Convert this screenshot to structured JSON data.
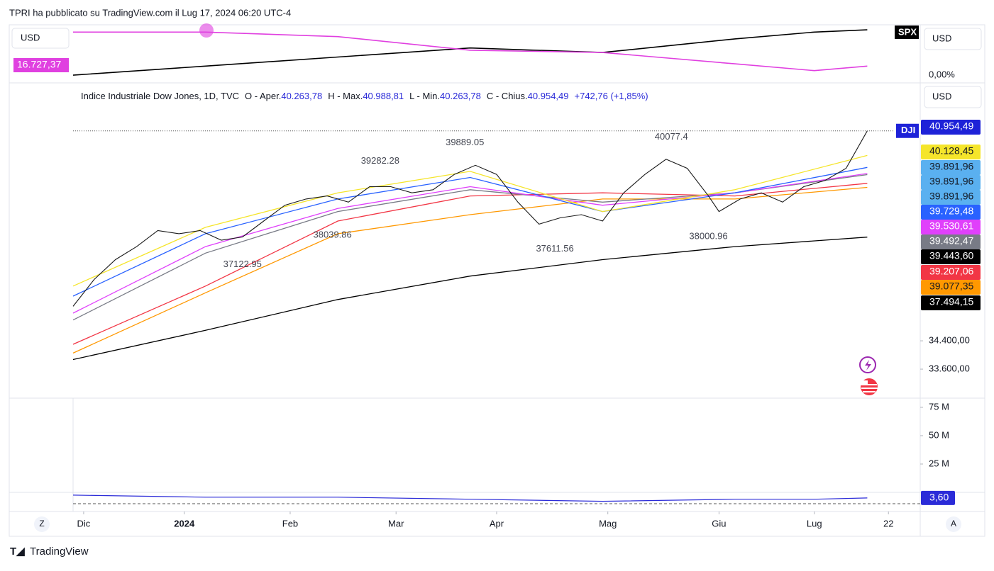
{
  "header": {
    "caption": "TPRI ha pubblicato su TradingView.com il Lug 17, 2024 06:20 UTC-4",
    "brand": "TradingView"
  },
  "compare": {
    "currency_left": "USD",
    "value_label": "16.727,37",
    "symbol": "SPX",
    "currency_right": "USD",
    "pct_label": "0,00%",
    "x": [
      0,
      25,
      50,
      75,
      100,
      125,
      140,
      150
    ],
    "ylim": [
      -3.4,
      21.9
    ],
    "series": [
      {
        "name": "SPX",
        "color": "#000000",
        "values": [
          0,
          4,
          8,
          12,
          10,
          16,
          19,
          20
        ]
      },
      {
        "color": "#e040e0",
        "values": [
          19,
          19,
          17,
          11,
          10,
          5,
          2,
          4
        ]
      }
    ]
  },
  "chart_data": {
    "type": "line",
    "currency": "USD",
    "legend": {
      "name": "Indice Industriale Dow Jones, 1D, TVC",
      "o": "O - Aper.",
      "ov": "40.263,78",
      "h": "H - Max.",
      "hv": "40.988,81",
      "l": "L - Min.",
      "lv": "40.263,78",
      "c": "C - Chius.",
      "cv": "40.954,49",
      "chg": "+742,76 (+1,85%)"
    },
    "symbol": "DJI",
    "log_scale": true,
    "ylim": [
      32800,
      42620
    ],
    "xlim": [
      0,
      160
    ],
    "xticks": [
      {
        "value": 2,
        "label": "Dic"
      },
      {
        "value": 21,
        "label": "2024"
      },
      {
        "value": 41,
        "label": "Feb"
      },
      {
        "value": 61,
        "label": "Mar"
      },
      {
        "value": 80,
        "label": "Apr"
      },
      {
        "value": 101,
        "label": "Mag"
      },
      {
        "value": 122,
        "label": "Giu"
      },
      {
        "value": 140,
        "label": "Lug"
      },
      {
        "value": 154,
        "label": "22"
      }
    ],
    "yticks": [
      {
        "value": 34400,
        "label": "34.400,00"
      },
      {
        "value": 33600,
        "label": "33.600,00"
      }
    ],
    "series": [
      {
        "name": "DJI",
        "color": "#1a1a1a",
        "x": [
          0,
          4,
          8,
          12,
          16,
          20,
          24,
          28,
          32,
          36,
          40,
          44,
          48,
          52,
          56,
          60,
          64,
          68,
          72,
          76,
          80,
          84,
          88,
          92,
          96,
          100,
          104,
          108,
          112,
          116,
          120,
          122,
          126,
          130,
          134,
          138,
          142,
          146,
          150
        ],
        "values": [
          35400,
          36200,
          36800,
          37200,
          37700,
          37600,
          37700,
          37400,
          37500,
          38000,
          38500,
          38700,
          38800,
          38600,
          39100,
          39100,
          38900,
          39000,
          39500,
          39800,
          39500,
          38600,
          37900,
          38100,
          38200,
          38000,
          38900,
          39500,
          40000,
          39700,
          38800,
          38300,
          38700,
          38900,
          38600,
          39100,
          39300,
          39700,
          40954.49
        ]
      },
      {
        "color": "#f5e52b",
        "x": [
          0,
          25,
          50,
          75,
          100,
          125,
          150
        ],
        "values": [
          36000,
          37800,
          38900,
          39600,
          38300,
          39000,
          40128.45
        ]
      },
      {
        "color": "#2962ff",
        "x": [
          0,
          25,
          50,
          75,
          100,
          125,
          150
        ],
        "values": [
          35700,
          37600,
          38700,
          39400,
          38300,
          38900,
          39729.48
        ]
      },
      {
        "color": "#e040fb",
        "x": [
          0,
          25,
          50,
          75,
          100,
          125,
          150
        ],
        "values": [
          35200,
          37200,
          38400,
          39100,
          38500,
          38900,
          39530.61
        ]
      },
      {
        "color": "#787b86",
        "x": [
          0,
          25,
          50,
          75,
          100,
          125,
          150
        ],
        "values": [
          35000,
          37000,
          38300,
          39000,
          38600,
          38900,
          39492.47
        ]
      },
      {
        "color": "#f23645",
        "x": [
          0,
          25,
          50,
          75,
          100,
          125,
          150
        ],
        "values": [
          34300,
          36000,
          38000,
          38800,
          38900,
          38800,
          39207.06
        ]
      },
      {
        "color": "#ff9800",
        "x": [
          0,
          25,
          50,
          75,
          100,
          125,
          150
        ],
        "values": [
          34050,
          35800,
          37600,
          38200,
          38700,
          38700,
          39077.35
        ]
      },
      {
        "color": "#000000",
        "x": [
          0,
          25,
          50,
          75,
          100,
          125,
          150
        ],
        "values": [
          33870,
          34700,
          35600,
          36300,
          36800,
          37200,
          37494.15
        ]
      }
    ],
    "price_labels": [
      {
        "value": 40954.49,
        "label": "40.954,49",
        "color": "#1e22d8"
      },
      {
        "value": 40128.45,
        "label": "40.128,45",
        "color": "#f5e52b"
      },
      {
        "value": 39891.96,
        "label": "39.891,96",
        "color": "#5ab0f0"
      },
      {
        "value": 39891.96,
        "label": "39.891,96",
        "color": "#5ab0f0"
      },
      {
        "value": 39891.96,
        "label": "39.891,96",
        "color": "#5ab0f0"
      },
      {
        "value": 39729.48,
        "label": "39.729,48",
        "color": "#2962ff"
      },
      {
        "value": 39530.61,
        "label": "39.530,61",
        "color": "#e040fb"
      },
      {
        "value": 39492.47,
        "label": "39.492,47",
        "color": "#787b86"
      },
      {
        "value": 39443.6,
        "label": "39.443,60",
        "color": "#000000"
      },
      {
        "value": 39207.06,
        "label": "39.207,06",
        "color": "#f23645"
      },
      {
        "value": 39077.35,
        "label": "39.077,35",
        "color": "#ff9800"
      },
      {
        "value": 37494.15,
        "label": "37.494,15",
        "color": "#000000"
      }
    ],
    "highs": [
      {
        "value": 39282.28,
        "label": "39282.28",
        "x": 58
      },
      {
        "value": 39889.05,
        "label": "39889.05",
        "x": 74
      },
      {
        "value": 40077.4,
        "label": "40077.4",
        "x": 113
      }
    ],
    "lows": [
      {
        "value": 38039.86,
        "label": "38039.86",
        "x": 49
      },
      {
        "value": 37122.95,
        "label": "37122.95",
        "x": 32
      },
      {
        "value": 37611.56,
        "label": "37611.56",
        "x": 91
      },
      {
        "value": 38000.96,
        "label": "38000.96",
        "x": 120
      }
    ]
  },
  "volume": {
    "ylim": [
      0,
      83100000
    ],
    "yticks": [
      {
        "value": 75000000,
        "label": "75 M"
      },
      {
        "value": 50000000,
        "label": "50 M"
      },
      {
        "value": 25000000,
        "label": "25 M"
      }
    ]
  },
  "indicator": {
    "ylim": [
      -3,
      6
    ],
    "x": [
      0,
      25,
      50,
      75,
      100,
      125,
      140,
      150
    ],
    "values": [
      5,
      4,
      4,
      3,
      2,
      3,
      3,
      3.6
    ],
    "value_label": "3,60",
    "color": "#2b2bd8"
  },
  "buttons": {
    "left": "Z",
    "right": "A"
  }
}
